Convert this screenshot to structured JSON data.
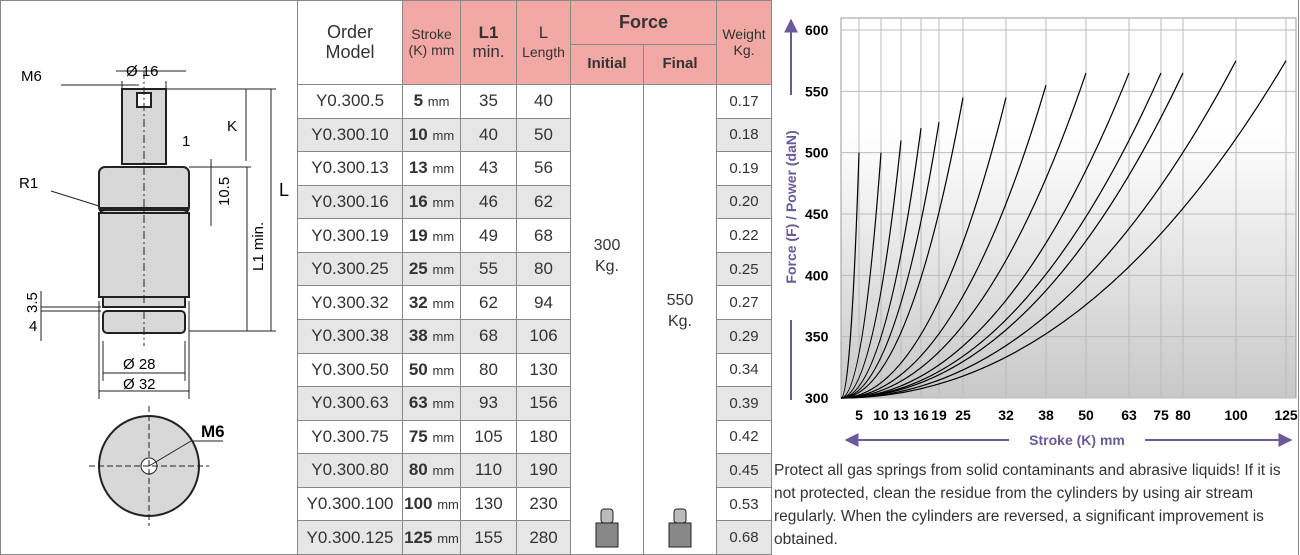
{
  "drawing": {
    "labels": [
      "M6",
      "Ø 16",
      "K",
      "1",
      "10.5",
      "L",
      "R1",
      "L1 min.",
      "3.5",
      "4",
      "Ø 28",
      "Ø 32",
      "M6"
    ]
  },
  "table": {
    "headers": {
      "model": [
        "Order",
        "Model"
      ],
      "stroke": [
        "Stroke",
        "(K) mm"
      ],
      "l1": [
        "L1",
        "min."
      ],
      "length": [
        "L",
        "Length"
      ],
      "force": "Force",
      "initial": "Initial",
      "final": "Final",
      "weight": [
        "Weight",
        "Kg."
      ]
    },
    "force_initial": [
      "300",
      "Kg."
    ],
    "force_final": [
      "550",
      "Kg."
    ],
    "rows": [
      {
        "model": "Y0.300.5",
        "stroke": "5",
        "unit": "mm",
        "l1": "35",
        "length": "40",
        "weight": "0.17"
      },
      {
        "model": "Y0.300.10",
        "stroke": "10",
        "unit": "mm",
        "l1": "40",
        "length": "50",
        "weight": "0.18"
      },
      {
        "model": "Y0.300.13",
        "stroke": "13",
        "unit": "mm",
        "l1": "43",
        "length": "56",
        "weight": "0.19"
      },
      {
        "model": "Y0.300.16",
        "stroke": "16",
        "unit": "mm",
        "l1": "46",
        "length": "62",
        "weight": "0.20"
      },
      {
        "model": "Y0.300.19",
        "stroke": "19",
        "unit": "mm",
        "l1": "49",
        "length": "68",
        "weight": "0.22"
      },
      {
        "model": "Y0.300.25",
        "stroke": "25",
        "unit": "mm",
        "l1": "55",
        "length": "80",
        "weight": "0.25"
      },
      {
        "model": "Y0.300.32",
        "stroke": "32",
        "unit": "mm",
        "l1": "62",
        "length": "94",
        "weight": "0.27"
      },
      {
        "model": "Y0.300.38",
        "stroke": "38",
        "unit": "mm",
        "l1": "68",
        "length": "106",
        "weight": "0.29"
      },
      {
        "model": "Y0.300.50",
        "stroke": "50",
        "unit": "mm",
        "l1": "80",
        "length": "130",
        "weight": "0.34"
      },
      {
        "model": "Y0.300.63",
        "stroke": "63",
        "unit": "mm",
        "l1": "93",
        "length": "156",
        "weight": "0.39"
      },
      {
        "model": "Y0.300.75",
        "stroke": "75",
        "unit": "mm",
        "l1": "105",
        "length": "180",
        "weight": "0.42"
      },
      {
        "model": "Y0.300.80",
        "stroke": "80",
        "unit": "mm",
        "l1": "110",
        "length": "190",
        "weight": "0.45"
      },
      {
        "model": "Y0.300.100",
        "stroke": "100",
        "unit": "mm",
        "l1": "130",
        "length": "230",
        "weight": "0.53"
      },
      {
        "model": "Y0.300.125",
        "stroke": "125",
        "unit": "mm",
        "l1": "155",
        "length": "280",
        "weight": "0.68"
      }
    ]
  },
  "chart_data": {
    "type": "curves",
    "y_label": "Force (F) / Power  (daN)",
    "x_label": "Stroke (K) mm",
    "x": [
      5,
      10,
      13,
      16,
      19,
      25,
      32,
      38,
      50,
      63,
      75,
      80,
      100,
      125
    ],
    "values": [
      500,
      500,
      510,
      520,
      525,
      545,
      545,
      555,
      565,
      565,
      565,
      565,
      575,
      575
    ],
    "color": "#000000",
    "xlim": [
      0,
      125
    ],
    "ylim": [
      300,
      600
    ],
    "xticks": [
      5,
      10,
      13,
      16,
      19,
      25,
      32,
      38,
      50,
      63,
      75,
      80,
      100,
      125
    ],
    "yticks": [
      300,
      350,
      400,
      450,
      500,
      550,
      600
    ],
    "grid": true
  },
  "note": "Protect all gas springs from solid contaminants and abrasive liquids! If it is not protected, clean the residue from the cylinders by using air stream regularly. When the cylinders are reversed, a significant improvement is obtained."
}
